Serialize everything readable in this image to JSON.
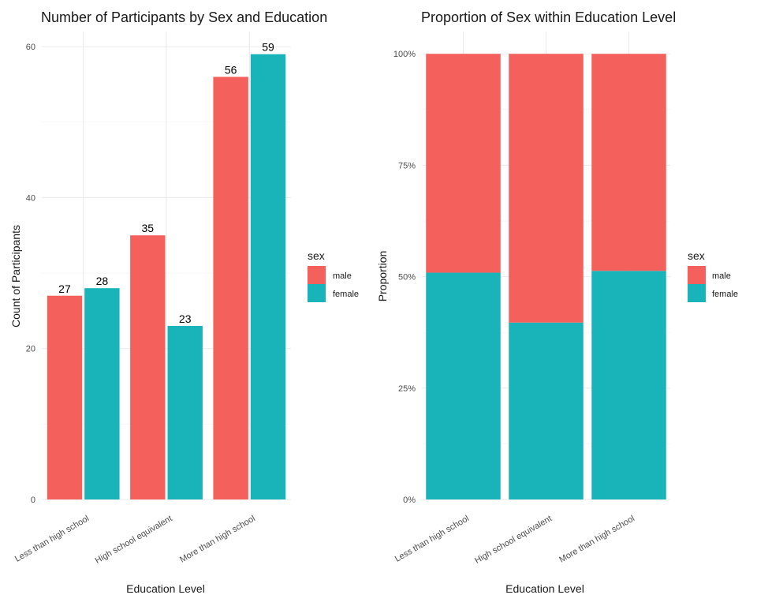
{
  "chart_data": [
    {
      "type": "bar",
      "title": "Number of Participants by Sex and Education",
      "xlabel": "Education Level",
      "ylabel": "Count of Participants",
      "categories": [
        "Less than high school",
        "High school equivalent",
        "More than high school"
      ],
      "series": [
        {
          "name": "male",
          "values": [
            27,
            35,
            56
          ]
        },
        {
          "name": "female",
          "values": [
            28,
            23,
            59
          ]
        }
      ],
      "ylim": [
        0,
        62
      ],
      "yticks": [
        0,
        20,
        40,
        60
      ],
      "ytick_labels": [
        "0",
        "20",
        "40",
        "60"
      ],
      "legend": {
        "title": "sex",
        "entries": [
          "male",
          "female"
        ],
        "position": "right"
      },
      "grid": true
    },
    {
      "type": "bar",
      "stacked": "fill",
      "title": "Proportion of Sex within Education Level",
      "xlabel": "Education Level",
      "ylabel": "Proportion",
      "categories": [
        "Less than high school",
        "High school equivalent",
        "More than high school"
      ],
      "series": [
        {
          "name": "male",
          "values": [
            0.491,
            0.603,
            0.487
          ]
        },
        {
          "name": "female",
          "values": [
            0.509,
            0.397,
            0.513
          ]
        }
      ],
      "ylim": [
        0,
        1.05
      ],
      "yticks": [
        0,
        0.25,
        0.5,
        0.75,
        1
      ],
      "ytick_labels": [
        "0%",
        "25%",
        "50%",
        "75%",
        "100%"
      ],
      "legend": {
        "title": "sex",
        "entries": [
          "male",
          "female"
        ],
        "position": "right"
      },
      "grid": true
    }
  ],
  "colors": {
    "male": "#F8766D",
    "female": "#00BFC4",
    "male_render": "#F4605C",
    "female_render": "#19B4B9"
  }
}
